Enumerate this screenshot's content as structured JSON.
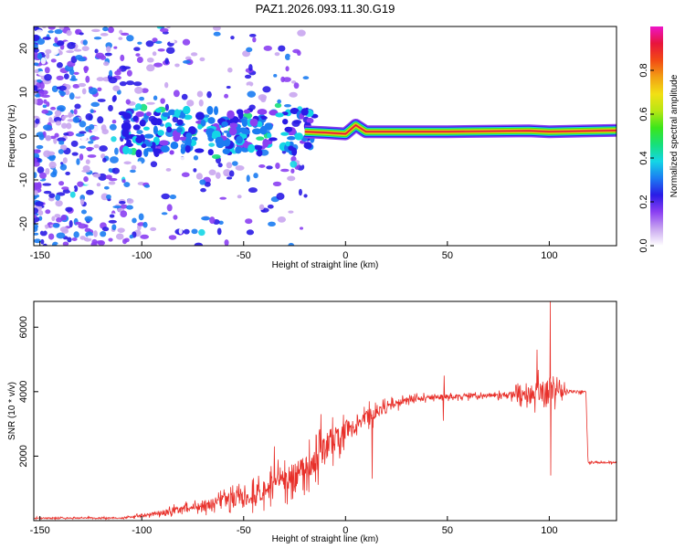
{
  "title": "PAZ1.2026.093.11.30.G19",
  "colors": {
    "snr_line": "#e8302a",
    "frame": "#000000",
    "colorbar": [
      "#ffffff",
      "#c9a6f0",
      "#8b3ff2",
      "#2a1be6",
      "#1b7cf2",
      "#14d6e6",
      "#16e07a",
      "#3ce61a",
      "#b8e614",
      "#f2e014",
      "#f2a014",
      "#f24a14",
      "#e8143c",
      "#ee14c8"
    ]
  },
  "chart_data": [
    {
      "type": "heatmap",
      "title": "PAZ1.2026.093.11.30.G19",
      "xlabel": "Height of straight line (km)",
      "ylabel": "Frequency (Hz)",
      "xlim": [
        -153,
        133
      ],
      "ylim": [
        -25,
        25
      ],
      "xticks": [
        -150,
        -100,
        -50,
        0,
        50,
        100
      ],
      "yticks": [
        -20,
        -10,
        0,
        10,
        20
      ],
      "colorbar": {
        "label": "Normalized spectral amplitude",
        "range": [
          0.0,
          1.0
        ],
        "ticks": [
          0.0,
          0.2,
          0.4,
          0.6,
          0.8
        ]
      },
      "ridge": [
        {
          "x": -20,
          "f": 1.0,
          "amp": 0.5
        },
        {
          "x": -10,
          "f": 0.8,
          "amp": 0.6
        },
        {
          "x": 0,
          "f": 0.5,
          "amp": 0.7
        },
        {
          "x": 5,
          "f": 2.5,
          "amp": 0.7
        },
        {
          "x": 10,
          "f": 1.0,
          "amp": 0.85
        },
        {
          "x": 50,
          "f": 1.0,
          "amp": 0.95
        },
        {
          "x": 90,
          "f": 1.2,
          "amp": 0.9
        },
        {
          "x": 100,
          "f": 1.0,
          "amp": 0.9
        },
        {
          "x": 133,
          "f": 1.3,
          "amp": 0.6
        }
      ]
    },
    {
      "type": "line",
      "xlabel": "Height of straight line (km)",
      "ylabel": "SNR (10 * v/v)",
      "xlim": [
        -153,
        133
      ],
      "ylim": [
        0,
        6800
      ],
      "xticks": [
        -150,
        -100,
        -50,
        0,
        50,
        100
      ],
      "yticks": [
        2000,
        4000,
        6000
      ],
      "envelope": [
        {
          "x": -153,
          "mean": 80,
          "noise": 40
        },
        {
          "x": -110,
          "mean": 80,
          "noise": 40
        },
        {
          "x": -100,
          "mean": 150,
          "noise": 100
        },
        {
          "x": -80,
          "mean": 350,
          "noise": 250
        },
        {
          "x": -60,
          "mean": 600,
          "noise": 400
        },
        {
          "x": -40,
          "mean": 900,
          "noise": 700
        },
        {
          "x": -20,
          "mean": 1600,
          "noise": 900
        },
        {
          "x": -10,
          "mean": 2200,
          "noise": 900
        },
        {
          "x": 0,
          "mean": 2800,
          "noise": 700
        },
        {
          "x": 10,
          "mean": 3200,
          "noise": 500
        },
        {
          "x": 20,
          "mean": 3500,
          "noise": 300
        },
        {
          "x": 30,
          "mean": 3750,
          "noise": 200
        },
        {
          "x": 50,
          "mean": 3850,
          "noise": 150
        },
        {
          "x": 80,
          "mean": 3900,
          "noise": 150
        },
        {
          "x": 90,
          "mean": 3950,
          "noise": 600
        },
        {
          "x": 100,
          "mean": 4000,
          "noise": 900
        },
        {
          "x": 110,
          "mean": 4000,
          "noise": 100
        },
        {
          "x": 118,
          "mean": 4000,
          "noise": 100
        },
        {
          "x": 119,
          "mean": 1800,
          "noise": 60
        },
        {
          "x": 133,
          "mean": 1800,
          "noise": 60
        }
      ],
      "spikes": [
        {
          "x": -35,
          "y": 2300
        },
        {
          "x": -12,
          "y": 3300
        },
        {
          "x": 13,
          "y": 1300
        },
        {
          "x": 48,
          "y": 3100
        },
        {
          "x": 48.5,
          "y": 4500
        },
        {
          "x": 94,
          "y": 5300
        },
        {
          "x": 100.5,
          "y": 6800
        },
        {
          "x": 100.8,
          "y": 1400
        }
      ]
    }
  ]
}
